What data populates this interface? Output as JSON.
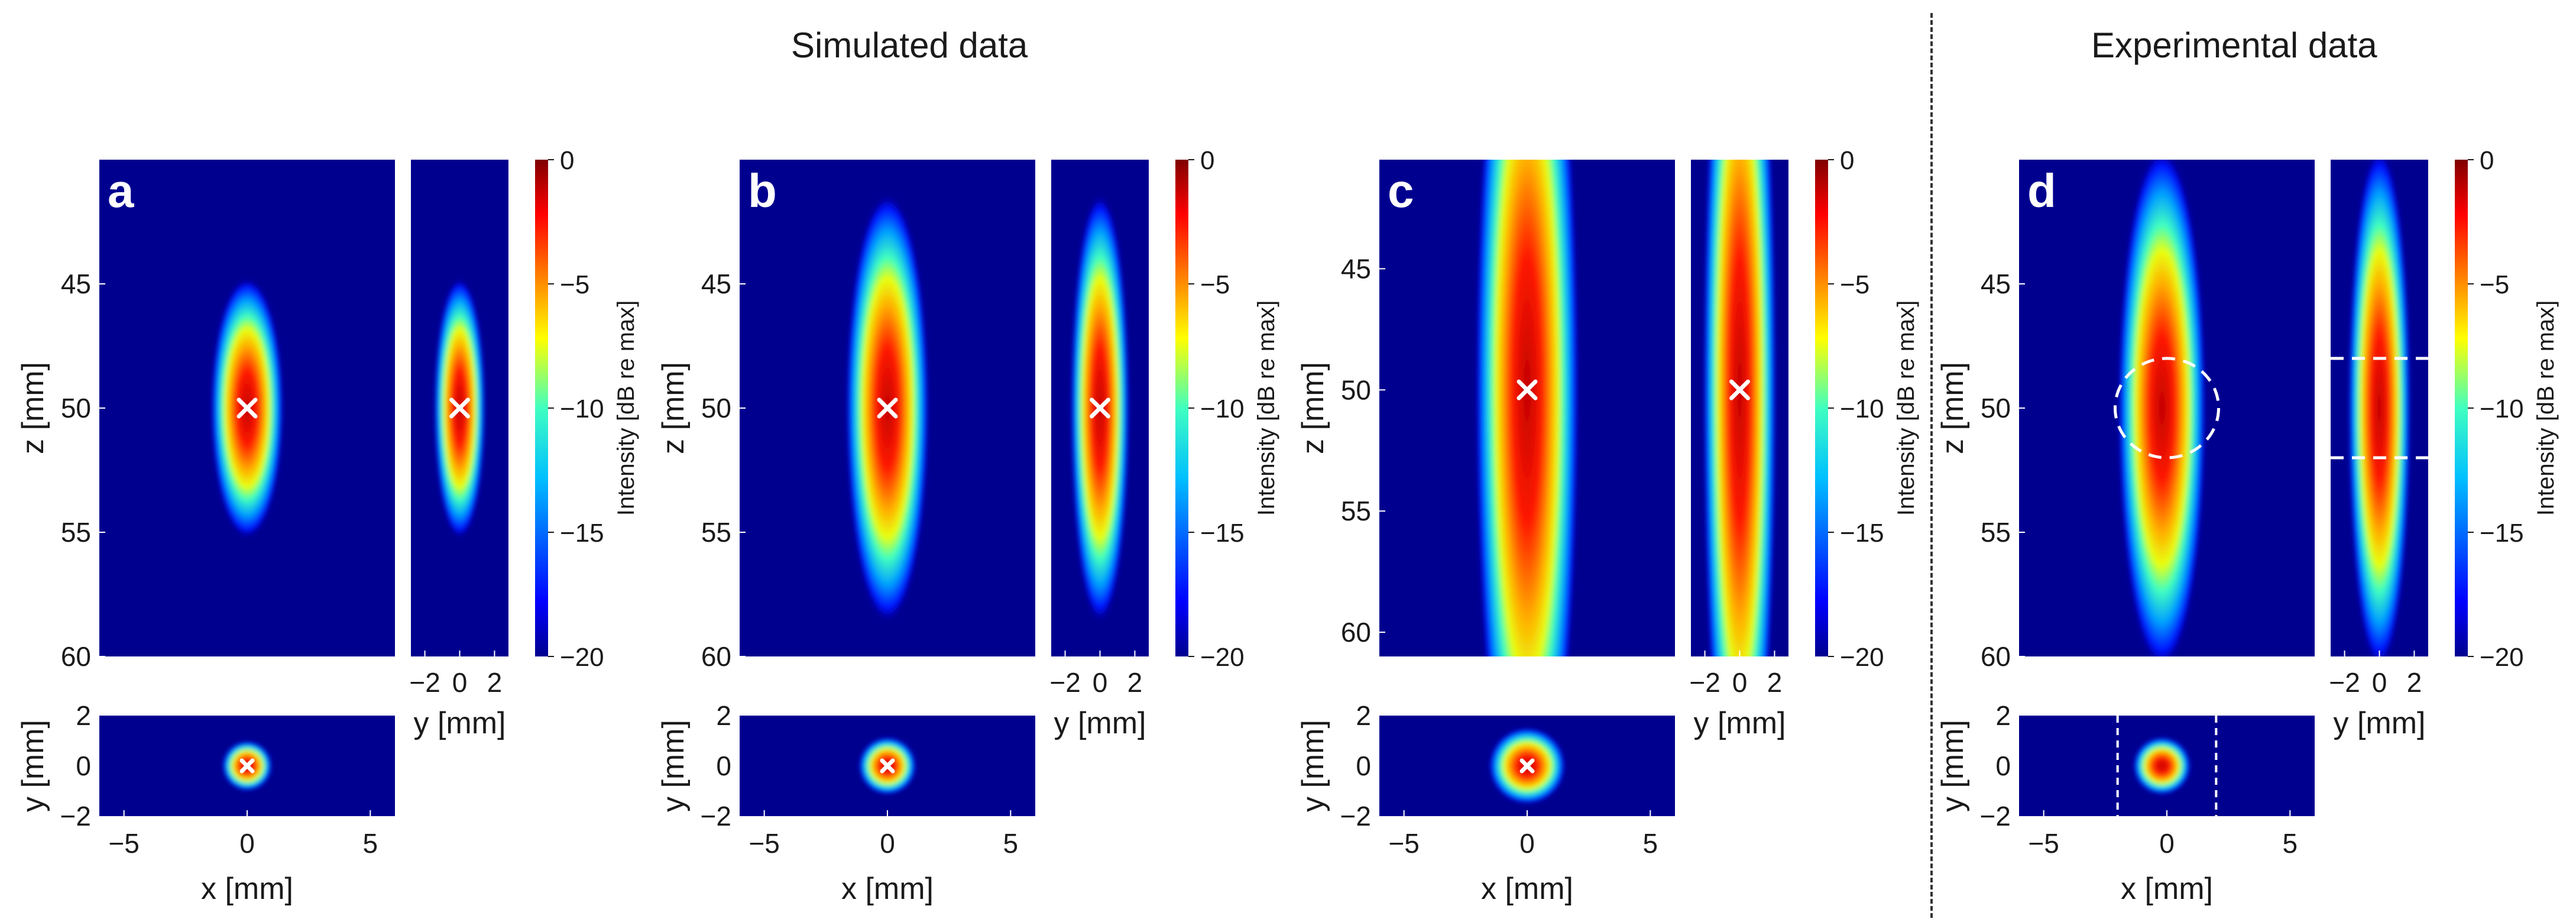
{
  "titles": {
    "simulated": "Simulated data",
    "experimental": "Experimental data"
  },
  "colormap": "jet",
  "colorbar": {
    "label": "Intensity [dB re max]",
    "ticks": [
      0,
      -5,
      -10,
      -15,
      -20
    ],
    "range": [
      -20,
      0
    ]
  },
  "chart_data": [
    {
      "type": "heatmap",
      "panel": "a",
      "group": "Simulated data",
      "xz_view": {
        "ylabel": "z [mm]",
        "yticks": [
          45,
          50,
          55,
          60
        ],
        "zlim": [
          40,
          60
        ],
        "xlim": [
          -6,
          6
        ],
        "peak": {
          "x": 0,
          "z": 50
        },
        "length_z": 8.5,
        "width_x": 1.4,
        "marker": "x"
      },
      "yz_view": {
        "xlabel": "y [mm]",
        "xticks": [
          -2,
          0,
          2
        ],
        "ylim": [
          -2.8,
          2.8
        ],
        "peak": {
          "y": 0,
          "z": 50
        },
        "length_z": 8.5,
        "width_y": 1.4,
        "marker": "x"
      },
      "xy_view": {
        "xlabel": "x [mm]",
        "ylabel": "y [mm]",
        "xticks": [
          -5,
          0,
          5
        ],
        "yticks": [
          2,
          0,
          -2
        ],
        "xlim": [
          -6,
          6
        ],
        "ylim": [
          -2,
          2
        ],
        "peak": {
          "x": 0,
          "y": 0
        },
        "diameter": 1.3,
        "marker": "x"
      },
      "colorbar": {
        "label": "Intensity [dB re max]",
        "ticks": [
          0,
          -5,
          -10,
          -15,
          -20
        ]
      }
    },
    {
      "type": "heatmap",
      "panel": "b",
      "group": "Simulated data",
      "xz_view": {
        "ylabel": "z [mm]",
        "yticks": [
          45,
          50,
          55,
          60
        ],
        "zlim": [
          40,
          60
        ],
        "xlim": [
          -6,
          6
        ],
        "peak": {
          "x": 0,
          "z": 50
        },
        "length_z": 14,
        "width_x": 1.6,
        "marker": "x"
      },
      "yz_view": {
        "xlabel": "y [mm]",
        "xticks": [
          -2,
          0,
          2
        ],
        "ylim": [
          -2.8,
          2.8
        ],
        "peak": {
          "y": 0,
          "z": 50
        },
        "length_z": 14,
        "width_y": 1.6,
        "marker": "x"
      },
      "xy_view": {
        "xlabel": "x [mm]",
        "ylabel": "y [mm]",
        "xticks": [
          -5,
          0,
          5
        ],
        "yticks": [
          2,
          0,
          -2
        ],
        "xlim": [
          -6,
          6
        ],
        "ylim": [
          -2,
          2
        ],
        "peak": {
          "x": 0,
          "y": 0
        },
        "diameter": 1.5,
        "marker": "x"
      },
      "colorbar": {
        "label": "Intensity [dB re max]",
        "ticks": [
          0,
          -5,
          -10,
          -15,
          -20
        ]
      }
    },
    {
      "type": "heatmap",
      "panel": "c",
      "group": "Simulated data",
      "xz_view": {
        "ylabel": "z [mm]",
        "yticks": [
          45,
          50,
          55,
          60
        ],
        "zlim": [
          40.5,
          61
        ],
        "xlim": [
          -6,
          6
        ],
        "peak": {
          "x": 0,
          "z": 50
        },
        "length_z": 32,
        "width_x": 2.0,
        "marker": "x"
      },
      "yz_view": {
        "xlabel": "y [mm]",
        "xticks": [
          -2,
          0,
          2
        ],
        "ylim": [
          -2.8,
          2.8
        ],
        "peak": {
          "y": 0,
          "z": 50
        },
        "length_z": 32,
        "width_y": 2.0,
        "marker": "x"
      },
      "xy_view": {
        "xlabel": "x [mm]",
        "ylabel": "y [mm]",
        "xticks": [
          -5,
          0,
          5
        ],
        "yticks": [
          2,
          0,
          -2
        ],
        "xlim": [
          -6,
          6
        ],
        "ylim": [
          -2,
          2
        ],
        "peak": {
          "x": 0,
          "y": 0
        },
        "diameter": 2.0,
        "marker": "x"
      },
      "colorbar": {
        "label": "Intensity [dB re max]",
        "ticks": [
          0,
          -5,
          -10,
          -15,
          -20
        ]
      }
    },
    {
      "type": "heatmap",
      "panel": "d",
      "group": "Experimental data",
      "xz_view": {
        "ylabel": "z [mm]",
        "yticks": [
          45,
          50,
          55,
          60
        ],
        "zlim": [
          40,
          60
        ],
        "xlim": [
          -6,
          6
        ],
        "peak": {
          "x": -0.2,
          "z": 50
        },
        "length_z": 17,
        "width_x": 1.7,
        "overlay": {
          "shape": "dashed-ellipse",
          "center": [
            0,
            50
          ],
          "radius_x": 2.1,
          "radius_z": 2.0
        }
      },
      "yz_view": {
        "xlabel": "y [mm]",
        "xticks": [
          -2,
          0,
          2
        ],
        "ylim": [
          -2.8,
          2.8
        ],
        "peak": {
          "y": 0,
          "z": 50
        },
        "length_z": 17,
        "width_y": 1.7,
        "overlay": {
          "shape": "dashed-lines",
          "z": [
            48,
            52
          ]
        }
      },
      "xy_view": {
        "xlabel": "x [mm]",
        "ylabel": "y [mm]",
        "xticks": [
          -5,
          0,
          5
        ],
        "yticks": [
          2,
          0,
          -2
        ],
        "xlim": [
          -6,
          6
        ],
        "ylim": [
          -2,
          2
        ],
        "peak": {
          "x": -0.2,
          "y": 0
        },
        "diameter": 1.5,
        "overlay": {
          "shape": "dashed-lines",
          "x": [
            -2,
            2
          ]
        }
      },
      "colorbar": {
        "label": "Intensity [dB re max]",
        "ticks": [
          0,
          -5,
          -10,
          -15,
          -20
        ]
      }
    }
  ]
}
